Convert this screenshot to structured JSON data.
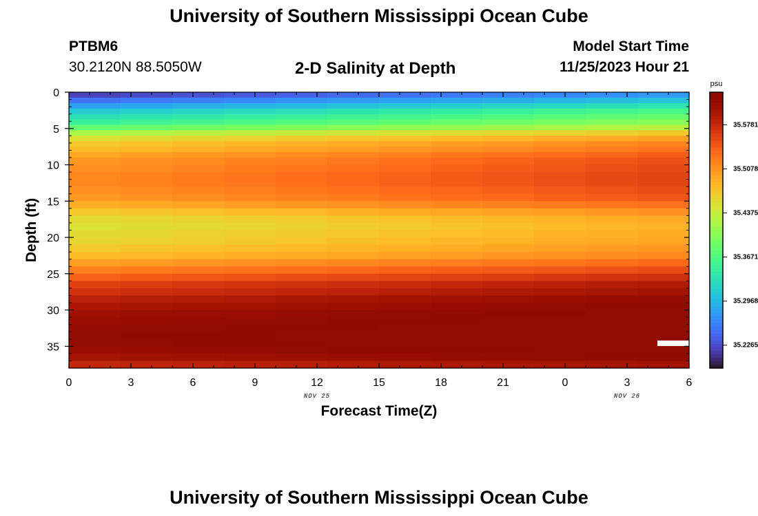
{
  "page": {
    "title": "University of Southern Mississippi Ocean Cube",
    "title_repeat": "University of Southern Mississippi Ocean Cube",
    "station_id": "PTBM6",
    "station_location": "30.2120N  88.5050W",
    "plot_title": "2-D Salinity at Depth",
    "model_start_label": "Model Start Time",
    "model_start_value": "11/25/2023 Hour 21"
  },
  "chart_data": {
    "type": "heatmap",
    "title": "2-D Salinity at Depth",
    "xlabel": "Forecast Time(Z)",
    "ylabel": "Depth (ft)",
    "x_tick_labels": [
      "0",
      "3",
      "6",
      "9",
      "12",
      "15",
      "18",
      "21",
      "0",
      "3",
      "6"
    ],
    "x_date_labels": [
      "NOV 25",
      "NOV 26"
    ],
    "y_tick_labels": [
      "0",
      "5",
      "10",
      "15",
      "20",
      "25",
      "30",
      "35"
    ],
    "ylim": [
      0,
      38
    ],
    "y_inverted": true,
    "xlim_hours": [
      0,
      30
    ],
    "colorbar": {
      "unit": "psu",
      "tick_labels": [
        "35.5781",
        "35.5078",
        "35.4375",
        "35.3671",
        "35.2968",
        "35.2265"
      ],
      "colormap": "turbo",
      "range": [
        35.19,
        35.63
      ]
    },
    "time_columns_hours": [
      0,
      2.5,
      5,
      7.5,
      10,
      12.5,
      15,
      17.5,
      20,
      22.5,
      25,
      27.5
    ],
    "depth_rows_ft": [
      0,
      0.75,
      1.5,
      2.25,
      3,
      3.75,
      4.5,
      5.25,
      6,
      6.75,
      7.5,
      8.25,
      9,
      10,
      11,
      12,
      13,
      14,
      15,
      16,
      17,
      18,
      19,
      20,
      21,
      22,
      23,
      24,
      25,
      26,
      27,
      28,
      29,
      30,
      31,
      32,
      33,
      34,
      35,
      36,
      37
    ],
    "salinity_profile_psu": [
      35.22,
      35.25,
      35.28,
      35.31,
      35.33,
      35.35,
      35.38,
      35.42,
      35.45,
      35.47,
      35.48,
      35.495,
      35.505,
      35.51,
      35.515,
      35.515,
      35.51,
      35.505,
      35.49,
      35.47,
      35.455,
      35.45,
      35.455,
      35.46,
      35.47,
      35.48,
      35.5,
      35.52,
      35.54,
      35.56,
      35.57,
      35.585,
      35.595,
      35.605,
      35.61,
      35.615,
      35.62,
      35.618,
      35.61,
      35.6,
      35.58
    ],
    "time_drift_surface_psu": [
      0,
      0.005,
      0.01,
      0.015,
      0.02,
      0.025,
      0.03,
      0.035,
      0.04,
      0.045,
      0.05,
      0.055
    ],
    "time_drift_bottom_psu": [
      0,
      0.002,
      0.004,
      0.006,
      0.008,
      0.01,
      0.012,
      0.014,
      0.016,
      0.018,
      0.02,
      0.022
    ],
    "missing_cell": {
      "time_hour": 28.5,
      "depth_ft": 34.2
    }
  }
}
